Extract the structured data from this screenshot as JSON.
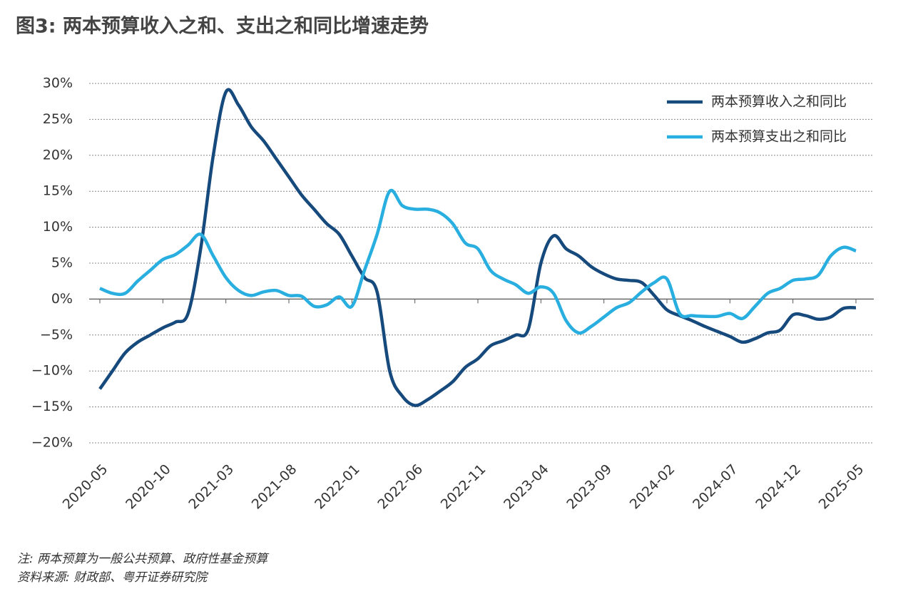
{
  "chart_data": {
    "type": "line",
    "title": "图3: 两本预算收入之和、支出之和同比增速走势",
    "notes": [
      "注: 两本预算为一般公共预算、政府性基金预算",
      "资料来源: 财政部、粤开证券研究院"
    ],
    "categories": [
      "2020-05",
      null,
      null,
      null,
      null,
      "2020-10",
      null,
      null,
      null,
      null,
      "2021-03",
      null,
      null,
      null,
      null,
      "2021-08",
      null,
      null,
      null,
      null,
      "2022-01",
      null,
      null,
      null,
      null,
      "2022-06",
      null,
      null,
      null,
      null,
      "2022-11",
      null,
      null,
      null,
      null,
      "2023-04",
      null,
      null,
      null,
      null,
      "2023-09",
      null,
      null,
      null,
      null,
      "2024-02",
      null,
      null,
      null,
      null,
      "2024-07",
      null,
      null,
      null,
      null,
      "2024-12",
      null,
      null,
      null,
      null,
      "2025-05"
    ],
    "series": [
      {
        "name": "两本预算收入之和同比",
        "color": "#174a7c",
        "values": [
          -12.5,
          -10,
          -7.5,
          -6,
          -5,
          -4,
          -3.2,
          -2,
          7,
          20,
          28.8,
          27,
          24,
          22,
          19.5,
          17,
          14.5,
          12.5,
          10.5,
          9,
          6,
          3,
          1,
          -10,
          -13.5,
          -14.8,
          -14,
          -12.8,
          -11.5,
          -9.5,
          -8.3,
          -6.5,
          -5.8,
          -5,
          -4.2,
          5,
          8.8,
          7,
          6,
          4.5,
          3.5,
          2.8,
          2.6,
          2.3,
          0.5,
          -1.5,
          -2.3,
          -3,
          -3.8,
          -4.5,
          -5.2,
          -6,
          -5.5,
          -4.7,
          -4.3,
          -2.2,
          -2.3,
          -2.8,
          -2.5,
          -1.3,
          -1.2
        ]
      },
      {
        "name": "两本预算支出之和同比",
        "color": "#29aee0",
        "values": [
          1.5,
          0.8,
          0.8,
          2.5,
          4,
          5.5,
          6.2,
          7.5,
          9,
          6,
          3,
          1.2,
          0.5,
          1,
          1.2,
          0.5,
          0.4,
          -1,
          -0.8,
          0.3,
          -1,
          4,
          9,
          15,
          13,
          12.5,
          12.5,
          12,
          10.5,
          7.8,
          7,
          4,
          2.8,
          2,
          0.8,
          1.7,
          0.8,
          -3,
          -4.7,
          -3.8,
          -2.5,
          -1.2,
          -0.5,
          1,
          2.3,
          2.8,
          -2,
          -2.3,
          -2.4,
          -2.4,
          -2,
          -2.7,
          -1,
          0.8,
          1.5,
          2.6,
          2.8,
          3.3,
          6,
          7.2,
          6.7
        ]
      }
    ],
    "ylim": [
      -20,
      30
    ],
    "yticks": [
      {
        "value": 30,
        "label": "30%"
      },
      {
        "value": 25,
        "label": "25%"
      },
      {
        "value": 20,
        "label": "20%"
      },
      {
        "value": 15,
        "label": "15%"
      },
      {
        "value": 10,
        "label": "10%"
      },
      {
        "value": 5,
        "label": "5%"
      },
      {
        "value": 0,
        "label": "0%"
      },
      {
        "value": -5,
        "label": "−5%"
      },
      {
        "value": -10,
        "label": "−10%"
      },
      {
        "value": -15,
        "label": "−15%"
      },
      {
        "value": -20,
        "label": "−20%"
      }
    ],
    "grid": true,
    "legend": "top-right"
  }
}
